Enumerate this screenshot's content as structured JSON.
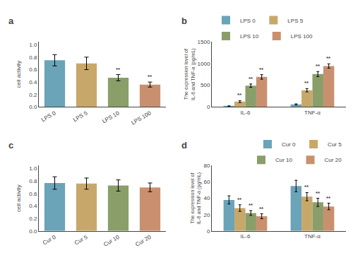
{
  "chart_data": [
    {
      "type": "bar",
      "title": "a",
      "categories": [
        "LPS 0",
        "LPS 5",
        "LPS 10",
        "LPS 100"
      ],
      "values": [
        0.75,
        0.7,
        0.47,
        0.36
      ],
      "errors": [
        0.09,
        0.1,
        0.05,
        0.04
      ],
      "colors": [
        "#6ba3b8",
        "#c8a86a",
        "#8a9e6a",
        "#c99070"
      ],
      "ylabel": "cell activity",
      "ylim": [
        0,
        1.05
      ],
      "yticks": [
        {
          "value": 0.0,
          "label": "0.0"
        },
        0.2,
        0.4,
        0.6,
        0.8,
        {
          "value": 1.0,
          "label": "1.0"
        }
      ],
      "annotations": [
        {
          "category": "LPS 10",
          "text": "**"
        },
        {
          "category": "LPS 100",
          "text": "**"
        }
      ],
      "grid": false
    },
    {
      "type": "bar",
      "title": "b",
      "categories": [
        "IL-6",
        "TNF-α"
      ],
      "series": [
        {
          "name": "LPS 0",
          "color": "#6ba3b8",
          "values": [
            18,
            60
          ],
          "errors": [
            8,
            12
          ]
        },
        {
          "name": "LPS 5",
          "color": "#c8a86a",
          "values": [
            125,
            385
          ],
          "errors": [
            22,
            38
          ]
        },
        {
          "name": "LPS 10",
          "color": "#8a9e6a",
          "values": [
            490,
            755
          ],
          "errors": [
            38,
            58
          ]
        },
        {
          "name": "LPS 100",
          "color": "#c99070",
          "values": [
            690,
            940
          ],
          "errors": [
            52,
            50
          ]
        }
      ],
      "ylabel": "The expression level of\nIL-6 and TNF-α (pg/mL)",
      "ylim": [
        0,
        1500
      ],
      "yticks": [
        0,
        500,
        1000,
        1500
      ],
      "annotations": [
        {
          "category": "IL-6",
          "series": "LPS 5",
          "text": "**"
        },
        {
          "category": "IL-6",
          "series": "LPS 10",
          "text": "**"
        },
        {
          "category": "IL-6",
          "series": "LPS 100",
          "text": "**"
        },
        {
          "category": "TNF-α",
          "series": "LPS 5",
          "text": "**"
        },
        {
          "category": "TNF-α",
          "series": "LPS 10",
          "text": "**"
        },
        {
          "category": "TNF-α",
          "series": "LPS 100",
          "text": "**"
        }
      ],
      "legend": "upper left",
      "grid": false
    },
    {
      "type": "bar",
      "title": "c",
      "categories": [
        "Cur 0",
        "Cur 5",
        "Cur 10",
        "Cur 20"
      ],
      "values": [
        0.77,
        0.76,
        0.73,
        0.7
      ],
      "errors": [
        0.1,
        0.09,
        0.09,
        0.07
      ],
      "colors": [
        "#6ba3b8",
        "#c8a86a",
        "#8a9e6a",
        "#c99070"
      ],
      "ylabel": "cell activity",
      "ylim": [
        0,
        1.05
      ],
      "yticks": [
        {
          "value": 0.0,
          "label": "0.0"
        },
        0.2,
        0.4,
        0.6,
        0.8,
        {
          "value": 1.0,
          "label": "1.0"
        }
      ],
      "grid": false
    },
    {
      "type": "bar",
      "title": "d",
      "categories": [
        "IL-6",
        "TNF-α"
      ],
      "series": [
        {
          "name": "Cur 0",
          "color": "#6ba3b8",
          "values": [
            38,
            55
          ],
          "errors": [
            5,
            7
          ]
        },
        {
          "name": "Cur 5",
          "color": "#c8a86a",
          "values": [
            28,
            42
          ],
          "errors": [
            4,
            5
          ]
        },
        {
          "name": "Cur 10",
          "color": "#8a9e6a",
          "values": [
            22,
            35
          ],
          "errors": [
            3,
            5
          ]
        },
        {
          "name": "Cur 20",
          "color": "#c99070",
          "values": [
            18,
            30
          ],
          "errors": [
            3,
            4
          ]
        }
      ],
      "ylabel": "The expression level of\nIL-6 and TNF-α (pg/mL)",
      "ylim": [
        0,
        80
      ],
      "yticks": [
        0,
        20,
        40,
        60,
        80
      ],
      "annotations": [
        {
          "category": "IL-6",
          "series": "Cur 5",
          "text": "**"
        },
        {
          "category": "IL-6",
          "series": "Cur 10",
          "text": "**"
        },
        {
          "category": "IL-6",
          "series": "Cur 20",
          "text": "**"
        },
        {
          "category": "TNF-α",
          "series": "Cur 5",
          "text": "**"
        },
        {
          "category": "TNF-α",
          "series": "Cur 10",
          "text": "**"
        },
        {
          "category": "TNF-α",
          "series": "Cur 20",
          "text": "**"
        }
      ],
      "legend": "upper right",
      "grid": false
    }
  ]
}
